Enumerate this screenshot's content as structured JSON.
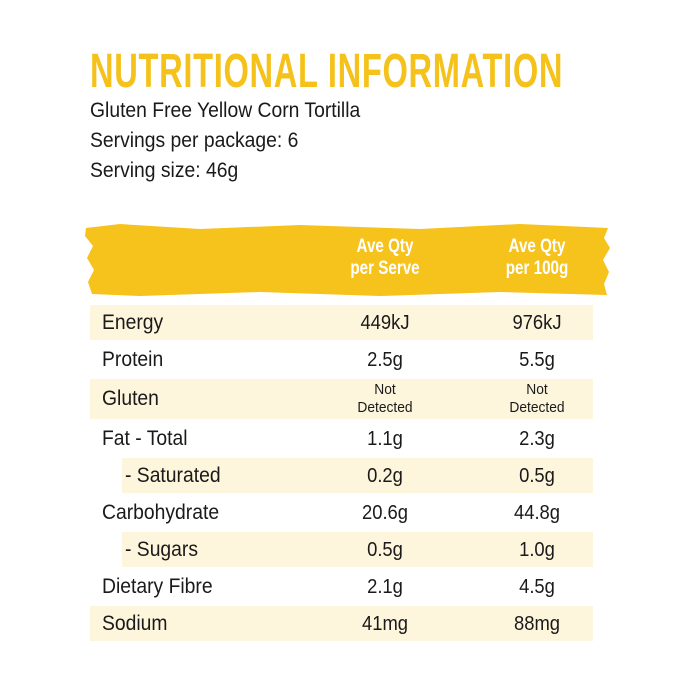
{
  "header": {
    "title": "NUTRITIONAL INFORMATION",
    "lines": [
      "Gluten Free Yellow Corn Tortilla",
      "Servings per package: 6",
      "Serving size: 46g"
    ]
  },
  "table": {
    "columns": [
      "Ave Qty per Serve",
      "Ave Qty per 100g"
    ],
    "rows": [
      [
        "Energy",
        "449kJ",
        "976kJ"
      ],
      [
        "Protein",
        "2.5g",
        "5.5g"
      ],
      [
        "Gluten",
        "Not Detected",
        "Not Detected"
      ],
      [
        "Fat - Total",
        "1.1g",
        "2.3g"
      ],
      [
        "- Saturated",
        "0.2g",
        "0.5g"
      ],
      [
        "Carbohydrate",
        "20.6g",
        "44.8g"
      ],
      [
        "- Sugars",
        "0.5g",
        "1.0g"
      ],
      [
        "Dietary Fibre",
        "2.1g",
        "4.5g"
      ],
      [
        "Sodium",
        "41mg",
        "88mg"
      ]
    ]
  }
}
